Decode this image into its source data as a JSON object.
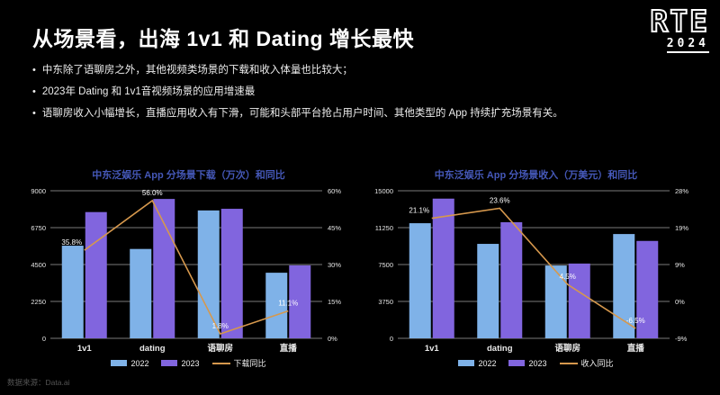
{
  "slide": {
    "title": "从场景看，出海 1v1 和 Dating 增长最快",
    "logo": {
      "line1": "RTE",
      "line2": "2024"
    },
    "bullets": [
      "中东除了语聊房之外，其他视频类场景的下载和收入体量也比较大；",
      "2023年 Dating 和 1v1音视频场景的应用增速最",
      "语聊房收入小幅增长，直播应用收入有下滑，可能和头部平台抢占用户时间、其他类型的 App 持续扩充场景有关。"
    ],
    "source": "数据来源：Data.ai"
  },
  "colors": {
    "background": "#000000",
    "title_text": "#ffffff",
    "chart_title": "#4558b8",
    "bar_2022": "#7fb2e8",
    "bar_2023": "#8165de",
    "line": "#d6984d",
    "grid": "#c0c0c0",
    "axis_text": "#e5e5e5",
    "category_text": "#eaeaea",
    "data_label": "#ffffff",
    "legend_text": "#f0f0f0",
    "source_text": "#545454"
  },
  "chart_data": [
    {
      "type": "bar+line",
      "title": "中东泛娱乐 App 分场景下载（万次）和同比",
      "categories": [
        "1v1",
        "dating",
        "语聊房",
        "直播"
      ],
      "series": [
        {
          "name": "2022",
          "color_key": "bar_2022",
          "values": [
            5650,
            5450,
            7800,
            4000
          ]
        },
        {
          "name": "2023",
          "color_key": "bar_2023",
          "values": [
            7700,
            8500,
            7900,
            4450
          ]
        }
      ],
      "line_series": {
        "name": "下载同比",
        "values": [
          35.8,
          56.0,
          1.8,
          11.1
        ],
        "labels": [
          "35.8%",
          "56.0%",
          "1.8%",
          "11.1%"
        ]
      },
      "y_left": {
        "min": 0,
        "max": 9000,
        "ticks": [
          "9000",
          "6750",
          "4500",
          "2250",
          "0"
        ]
      },
      "y_right": {
        "min": 0,
        "max": 60,
        "ticks": [
          "60%",
          "45%",
          "30%",
          "15%",
          "0%"
        ]
      },
      "legend": [
        "2022",
        "2023",
        "下载同比"
      ],
      "grid": true,
      "legend_position": "bottom"
    },
    {
      "type": "bar+line",
      "title": "中东泛娱乐 App 分场景收入（万美元）和同比",
      "categories": [
        "1v1",
        "dating",
        "语聊房",
        "直播"
      ],
      "series": [
        {
          "name": "2022",
          "color_key": "bar_2022",
          "values": [
            11700,
            9600,
            7400,
            10600
          ]
        },
        {
          "name": "2023",
          "color_key": "bar_2023",
          "values": [
            14200,
            11800,
            7600,
            9900
          ]
        }
      ],
      "line_series": {
        "name": "收入同比",
        "values": [
          21.1,
          23.6,
          4.5,
          -6.5
        ],
        "labels": [
          "21.1%",
          "23.6%",
          "4.5%",
          "-6.5%"
        ]
      },
      "y_left": {
        "min": 0,
        "max": 15000,
        "ticks": [
          "15000",
          "11250",
          "7500",
          "3750",
          "0"
        ]
      },
      "y_right": {
        "min": -9,
        "max": 28,
        "ticks": [
          "28%",
          "19%",
          "9%",
          "0%",
          "-9%"
        ]
      },
      "legend": [
        "2022",
        "2023",
        "收入同比"
      ],
      "grid": true,
      "legend_position": "bottom"
    }
  ]
}
